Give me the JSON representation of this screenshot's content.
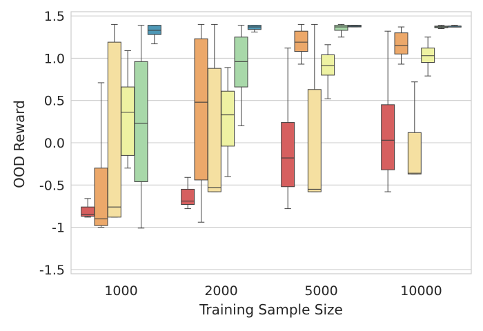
{
  "chart_data": {
    "type": "box",
    "title": "",
    "xlabel": "Training Sample Size",
    "ylabel": "OOD Reward",
    "categories": [
      "1000",
      "2000",
      "5000",
      "10000"
    ],
    "ylim": [
      -1.55,
      1.55
    ],
    "yticks": [
      {
        "value": 1.5,
        "label": "1.5"
      },
      {
        "value": 1.0,
        "label": "1.0"
      },
      {
        "value": 0.5,
        "label": "0.5"
      },
      {
        "value": 0.0,
        "label": "0.0"
      },
      {
        "value": -0.5,
        "label": "-0.5"
      },
      {
        "value": -1.0,
        "label": "-1"
      },
      {
        "value": -1.5,
        "label": "-1.5"
      }
    ],
    "grid": "horizontal",
    "legend": "none",
    "palette": [
      "#d65f5f",
      "#eca86a",
      "#f5e0a1",
      "#eef2a2",
      "#a8d8a9",
      "#4e98b6"
    ],
    "series": [
      {
        "color": "#d65f5f",
        "boxes": [
          {
            "category": "1000",
            "min": -0.88,
            "q1": -0.87,
            "median": -0.85,
            "q3": -0.76,
            "max": -0.66
          },
          {
            "category": "2000",
            "min": -0.78,
            "q1": -0.73,
            "median": -0.69,
            "q3": -0.55,
            "max": -0.41
          },
          {
            "category": "5000",
            "min": -0.78,
            "q1": -0.52,
            "median": -0.18,
            "q3": 0.24,
            "max": 1.12
          },
          {
            "category": "10000",
            "min": -0.58,
            "q1": -0.32,
            "median": 0.03,
            "q3": 0.45,
            "max": 1.32
          }
        ]
      },
      {
        "color": "#eca86a",
        "boxes": [
          {
            "category": "1000",
            "min": -1.0,
            "q1": -0.98,
            "median": -0.9,
            "q3": -0.3,
            "max": 0.71
          },
          {
            "category": "2000",
            "min": -0.94,
            "q1": -0.44,
            "median": 0.48,
            "q3": 1.23,
            "max": 1.4
          },
          {
            "category": "5000",
            "min": 0.93,
            "q1": 1.08,
            "median": 1.19,
            "q3": 1.32,
            "max": 1.4
          },
          {
            "category": "10000",
            "min": 0.93,
            "q1": 1.05,
            "median": 1.15,
            "q3": 1.3,
            "max": 1.37
          }
        ]
      },
      {
        "color": "#f5e0a1",
        "boxes": [
          {
            "category": "1000",
            "min": -0.88,
            "q1": -0.88,
            "median": -0.76,
            "q3": 1.19,
            "max": 1.4
          },
          {
            "category": "2000",
            "min": -0.58,
            "q1": -0.58,
            "median": -0.53,
            "q3": 0.88,
            "max": 1.4
          },
          {
            "category": "5000",
            "min": -0.58,
            "q1": -0.58,
            "median": -0.55,
            "q3": 0.63,
            "max": 1.4
          },
          {
            "category": "10000",
            "min": -0.37,
            "q1": -0.37,
            "median": -0.36,
            "q3": 0.12,
            "max": 0.72
          }
        ]
      },
      {
        "color": "#eef2a2",
        "boxes": [
          {
            "category": "1000",
            "min": -0.3,
            "q1": -0.15,
            "median": 0.36,
            "q3": 0.66,
            "max": 1.09
          },
          {
            "category": "2000",
            "min": -0.4,
            "q1": -0.04,
            "median": 0.33,
            "q3": 0.61,
            "max": 0.89
          },
          {
            "category": "5000",
            "min": 0.52,
            "q1": 0.8,
            "median": 0.91,
            "q3": 1.04,
            "max": 1.16
          },
          {
            "category": "10000",
            "min": 0.79,
            "q1": 0.95,
            "median": 1.03,
            "q3": 1.12,
            "max": 1.25
          }
        ]
      },
      {
        "color": "#a8d8a9",
        "boxes": [
          {
            "category": "1000",
            "min": -1.01,
            "q1": -0.46,
            "median": 0.23,
            "q3": 0.96,
            "max": 1.39
          },
          {
            "category": "2000",
            "min": 0.2,
            "q1": 0.66,
            "median": 0.96,
            "q3": 1.25,
            "max": 1.39
          },
          {
            "category": "5000",
            "min": 1.25,
            "q1": 1.33,
            "median": 1.37,
            "q3": 1.39,
            "max": 1.4
          },
          {
            "category": "10000",
            "min": 1.35,
            "q1": 1.36,
            "median": 1.37,
            "q3": 1.38,
            "max": 1.39
          }
        ]
      },
      {
        "color": "#4e98b6",
        "boxes": [
          {
            "category": "1000",
            "min": 1.17,
            "q1": 1.28,
            "median": 1.33,
            "q3": 1.39,
            "max": 1.39
          },
          {
            "category": "2000",
            "min": 1.31,
            "q1": 1.34,
            "median": 1.37,
            "q3": 1.39,
            "max": 1.39
          },
          {
            "category": "5000",
            "min": 1.37,
            "q1": 1.37,
            "median": 1.38,
            "q3": 1.39,
            "max": 1.39
          },
          {
            "category": "10000",
            "min": 1.37,
            "q1": 1.37,
            "median": 1.38,
            "q3": 1.38,
            "max": 1.39
          }
        ]
      }
    ]
  }
}
